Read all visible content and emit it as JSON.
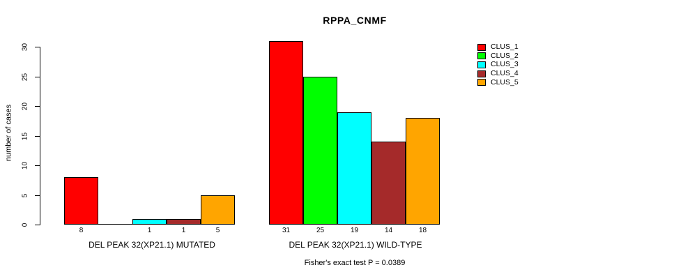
{
  "chart_data": {
    "type": "bar",
    "title": "RPPA_CNMF",
    "ylabel": "number of cases",
    "ylim": [
      0,
      31
    ],
    "yticks": [
      0,
      5,
      10,
      15,
      20,
      25,
      30
    ],
    "grid": false,
    "legend_position": "right",
    "series": [
      {
        "name": "CLUS_1",
        "color": "#ff0000"
      },
      {
        "name": "CLUS_2",
        "color": "#00ff00"
      },
      {
        "name": "CLUS_3",
        "color": "#00ffff"
      },
      {
        "name": "CLUS_4",
        "color": "#a52a2a"
      },
      {
        "name": "CLUS_5",
        "color": "#ffa500"
      }
    ],
    "groups": [
      {
        "label": "DEL PEAK 32(XP21.1) MUTATED",
        "values": [
          8,
          0,
          1,
          1,
          5
        ],
        "bar_labels": [
          "8",
          "",
          "1",
          "1",
          "5"
        ]
      },
      {
        "label": "DEL PEAK 32(XP21.1) WILD-TYPE",
        "values": [
          31,
          25,
          19,
          14,
          18
        ],
        "bar_labels": [
          "31",
          "25",
          "19",
          "14",
          "18"
        ]
      }
    ],
    "annotation": "Fisher's exact test P = 0.0389"
  }
}
